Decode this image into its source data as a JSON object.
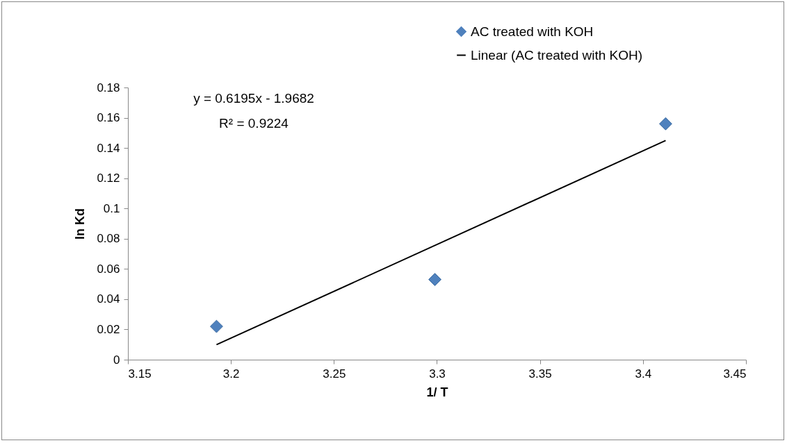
{
  "chart_data": {
    "type": "scatter",
    "xlabel": "1/ T",
    "ylabel": "ln Kd",
    "xlim": [
      3.15,
      3.45
    ],
    "xticks": [
      3.15,
      3.2,
      3.25,
      3.3,
      3.35,
      3.4,
      3.45
    ],
    "ylim": [
      0,
      0.18
    ],
    "yticks": [
      0,
      0.02,
      0.04,
      0.06,
      0.08,
      0.1,
      0.12,
      0.14,
      0.16,
      0.18
    ],
    "grid": false,
    "legend": "top right",
    "annotations": [
      "y = 0.6195x - 1.9682",
      "R² = 0.9224"
    ],
    "series": [
      {
        "name": "AC treated with KOH",
        "color": "#4f81bd",
        "marker": "diamond",
        "x": [
          3.193,
          3.299,
          3.411
        ],
        "values": [
          0.022,
          0.053,
          0.156
        ]
      },
      {
        "name": "Linear (AC treated with KOH)",
        "type": "line",
        "color": "#000000",
        "x": [
          3.193,
          3.411
        ],
        "values": [
          0.0099,
          0.1449
        ]
      }
    ]
  }
}
